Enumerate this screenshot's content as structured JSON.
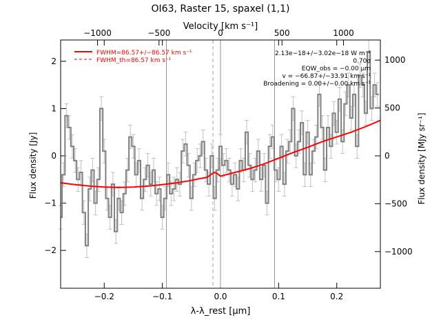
{
  "chart_data": {
    "type": "line",
    "title": "OI63, Raster 15, spaxel (1,1)",
    "xlabel": "λ-λ_rest [μm]",
    "ylabel": "Flux density [Jy]",
    "ylabel_right": "Flux density [MJy sr⁻¹]",
    "xlabel_top": "Velocity [km s⁻¹]",
    "xlim": [
      -0.275,
      0.275
    ],
    "ylim": [
      -2.8,
      2.45
    ],
    "ylim_right": [
      -1383,
      1210
    ],
    "xlim_top": [
      -1300,
      1300
    ],
    "xticks": [
      -0.2,
      -0.1,
      0.0,
      0.1,
      0.2
    ],
    "xtick_labels": [
      "−0.2",
      "−0.1",
      "0.0",
      "0.1",
      "0.2"
    ],
    "yticks": [
      -2,
      -1,
      0,
      1,
      2
    ],
    "ytick_labels": [
      "−2",
      "−1",
      "0",
      "1",
      "2"
    ],
    "yticks_right": [
      -1000,
      -500,
      0,
      500,
      1000
    ],
    "ytick_labels_right": [
      "−1000",
      "−500",
      "0",
      "500",
      "1000"
    ],
    "xticks_top": [
      -1000,
      -500,
      0,
      500,
      1000
    ],
    "xtick_labels_top": [
      "−1000",
      "−500",
      "0",
      "500",
      "1000"
    ],
    "vlines": [
      -0.093,
      0.0,
      0.093
    ],
    "vline_dashed": -0.013,
    "legend": {
      "position": "top-left",
      "entries": [
        {
          "label": "FWHM=86.57+/−86.57 km s⁻¹",
          "style": "solid",
          "color": "#ff0000"
        },
        {
          "label": "FWHM_th=86.57 km s⁻¹",
          "style": "dashed",
          "color": "#ff0000"
        }
      ]
    },
    "annotations": [
      "2.13e−18+/−3.02e−18 W m⁻²",
      "0.70σ",
      "EQW_obs = −0.00 μm",
      "v = −66.87+/−33.91 km s⁻¹",
      "Broadening = 0.00+/−0.00 km s⁻¹"
    ],
    "series": [
      {
        "style": "step",
        "color": "#808080",
        "errorbar_color": "#c0c0c0",
        "x": [
          -0.275,
          -0.27,
          -0.265,
          -0.26,
          -0.255,
          -0.25,
          -0.245,
          -0.24,
          -0.235,
          -0.23,
          -0.225,
          -0.22,
          -0.215,
          -0.21,
          -0.205,
          -0.2,
          -0.195,
          -0.19,
          -0.185,
          -0.18,
          -0.175,
          -0.17,
          -0.165,
          -0.16,
          -0.155,
          -0.15,
          -0.145,
          -0.14,
          -0.135,
          -0.13,
          -0.125,
          -0.12,
          -0.115,
          -0.11,
          -0.105,
          -0.1,
          -0.095,
          -0.09,
          -0.085,
          -0.08,
          -0.075,
          -0.07,
          -0.065,
          -0.06,
          -0.055,
          -0.05,
          -0.045,
          -0.04,
          -0.035,
          -0.03,
          -0.025,
          -0.02,
          -0.015,
          -0.01,
          -0.005,
          0.0,
          0.005,
          0.01,
          0.015,
          0.02,
          0.025,
          0.03,
          0.035,
          0.04,
          0.045,
          0.05,
          0.055,
          0.06,
          0.065,
          0.07,
          0.075,
          0.08,
          0.085,
          0.09,
          0.095,
          0.1,
          0.105,
          0.11,
          0.115,
          0.12,
          0.125,
          0.13,
          0.135,
          0.14,
          0.145,
          0.15,
          0.155,
          0.16,
          0.165,
          0.17,
          0.175,
          0.18,
          0.185,
          0.19,
          0.195,
          0.2,
          0.205,
          0.21,
          0.215,
          0.22,
          0.225,
          0.23,
          0.235,
          0.24,
          0.245,
          0.25,
          0.255,
          0.26,
          0.265,
          0.27
        ],
        "y": [
          -1.3,
          -0.4,
          0.85,
          0.6,
          0.2,
          -0.1,
          -0.5,
          -0.35,
          -1.2,
          -1.9,
          -0.7,
          -0.3,
          -1.0,
          -0.5,
          1.0,
          0.1,
          -0.9,
          -1.3,
          -0.6,
          -1.6,
          -0.9,
          -1.2,
          -0.8,
          -0.3,
          0.4,
          0.2,
          -0.4,
          -0.1,
          -0.9,
          -0.5,
          -0.2,
          -0.6,
          -0.3,
          -0.8,
          -0.7,
          -1.3,
          -0.9,
          -0.4,
          -0.8,
          -0.7,
          -0.5,
          -0.6,
          0.1,
          0.25,
          -0.2,
          -0.9,
          -0.4,
          -0.1,
          0.0,
          0.3,
          -0.3,
          -0.6,
          0.0,
          -0.9,
          -0.3,
          0.2,
          -0.2,
          -0.1,
          -0.3,
          -0.6,
          -0.4,
          -0.7,
          -0.1,
          -0.3,
          0.5,
          -0.2,
          -0.5,
          -0.3,
          0.1,
          -0.5,
          -0.2,
          -1.0,
          0.2,
          0.4,
          -0.3,
          -0.5,
          0.2,
          -0.6,
          0.1,
          0.3,
          1.0,
          0.0,
          0.3,
          0.7,
          -0.4,
          0.5,
          -0.4,
          0.1,
          0.4,
          1.3,
          0.6,
          -0.3,
          0.6,
          0.2,
          0.9,
          0.5,
          1.2,
          0.3,
          1.1,
          1.5,
          0.8,
          1.3,
          0.2,
          1.7,
          1.5,
          0.9,
          2.2,
          1.0,
          1.5,
          1.3
        ],
        "yerr": 0.25
      },
      {
        "style": "line",
        "color": "#ff0000",
        "x": [
          -0.275,
          -0.25,
          -0.225,
          -0.2,
          -0.175,
          -0.15,
          -0.125,
          -0.1,
          -0.075,
          -0.05,
          -0.035,
          -0.025,
          -0.02,
          -0.015,
          -0.01,
          -0.005,
          0.0,
          0.025,
          0.05,
          0.075,
          0.1,
          0.125,
          0.15,
          0.175,
          0.2,
          0.225,
          0.25,
          0.275
        ],
        "y": [
          -0.57,
          -0.61,
          -0.64,
          -0.66,
          -0.67,
          -0.66,
          -0.64,
          -0.61,
          -0.57,
          -0.52,
          -0.48,
          -0.46,
          -0.43,
          -0.38,
          -0.35,
          -0.38,
          -0.43,
          -0.35,
          -0.27,
          -0.17,
          -0.05,
          0.07,
          0.18,
          0.3,
          0.4,
          0.5,
          0.62,
          0.75
        ]
      }
    ]
  }
}
